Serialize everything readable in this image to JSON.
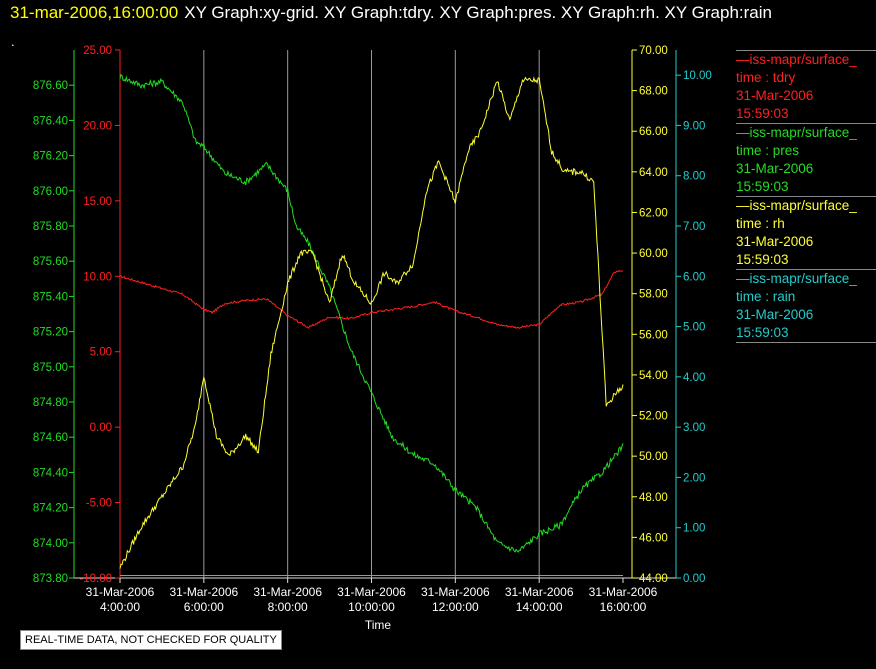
{
  "header": {
    "date_label": "31-mar-2006,16:00:00",
    "graph_list": "XY Graph:xy-grid.  XY Graph:tdry.  XY Graph:pres.  XY Graph:rh.  XY Graph:rain",
    "dot": "."
  },
  "disclaimer": "REAL-TIME DATA, NOT CHECKED FOR QUALITY",
  "legend": [
    {
      "name": "—iss-mapr/surface_",
      "line1": "time : tdry",
      "line2": "31-Mar-2006",
      "line3": "15:59:03",
      "color": "#ff2020"
    },
    {
      "name": "—iss-mapr/surface_",
      "line1": "time : pres",
      "line2": "31-Mar-2006",
      "line3": "15:59:03",
      "color": "#22dd22"
    },
    {
      "name": "—iss-mapr/surface_",
      "line1": "time : rh",
      "line2": "31-Mar-2006",
      "line3": "15:59:03",
      "color": "#ffff33"
    },
    {
      "name": "—iss-mapr/surface_",
      "line1": "time : rain",
      "line2": "31-Mar-2006",
      "line3": "15:59:03",
      "color": "#22cccc"
    }
  ],
  "chart_data": {
    "type": "line",
    "xlabel": "Time",
    "x_range_hours": [
      4,
      16
    ],
    "x_ticks": [
      {
        "hour": 4,
        "date": "31-Mar-2006",
        "time": "4:00:00"
      },
      {
        "hour": 6,
        "date": "31-Mar-2006",
        "time": "6:00:00"
      },
      {
        "hour": 8,
        "date": "31-Mar-2006",
        "time": "8:00:00"
      },
      {
        "hour": 10,
        "date": "31-Mar-2006",
        "time": "10:00:00"
      },
      {
        "hour": 12,
        "date": "31-Mar-2006",
        "time": "12:00:00"
      },
      {
        "hour": 14,
        "date": "31-Mar-2006",
        "time": "14:00:00"
      },
      {
        "hour": 16,
        "date": "31-Mar-2006",
        "time": "16:00:00"
      }
    ],
    "vertical_grid": true,
    "axes": {
      "tdry": {
        "range": [
          -10,
          25
        ],
        "ticks": [
          "25.00",
          "20.00",
          "15.00",
          "10.00",
          "5.00",
          "0.00",
          "-5.00",
          "-10.00"
        ],
        "color": "#ff2020"
      },
      "pres": {
        "range": [
          873.8,
          876.8
        ],
        "ticks": [
          "873.80",
          "874.00",
          "874.20",
          "874.40",
          "874.60",
          "874.80",
          "875.00",
          "875.20",
          "875.40",
          "875.60",
          "875.80",
          "876.00",
          "876.20",
          "876.40",
          "876.60"
        ],
        "color": "#22dd22"
      },
      "rh": {
        "range": [
          44,
          70
        ],
        "ticks": [
          "44.00",
          "46.00",
          "48.00",
          "50.00",
          "52.00",
          "54.00",
          "56.00",
          "58.00",
          "60.00",
          "62.00",
          "64.00",
          "66.00",
          "68.00",
          "70.00"
        ],
        "color": "#ffff33"
      },
      "rain": {
        "range": [
          0,
          10.5
        ],
        "ticks": [
          "0.00",
          "1.00",
          "2.00",
          "3.00",
          "4.00",
          "5.00",
          "6.00",
          "7.00",
          "8.00",
          "9.00",
          "10.00"
        ],
        "color": "#22cccc"
      }
    },
    "series": [
      {
        "name": "tdry",
        "axis": "tdry",
        "color": "#ff2020",
        "x": [
          4.0,
          4.5,
          5.0,
          5.5,
          6.0,
          6.2,
          6.5,
          7.0,
          7.5,
          8.0,
          8.5,
          9.0,
          9.5,
          10.0,
          10.5,
          11.0,
          11.5,
          12.0,
          12.5,
          13.0,
          13.5,
          14.0,
          14.5,
          15.0,
          15.5,
          15.8,
          16.0
        ],
        "values": [
          10.0,
          9.6,
          9.2,
          8.8,
          7.8,
          7.6,
          8.2,
          8.4,
          8.5,
          7.4,
          6.6,
          7.3,
          7.2,
          7.6,
          7.8,
          8.0,
          8.3,
          7.7,
          7.3,
          6.8,
          6.6,
          6.8,
          8.1,
          8.3,
          8.8,
          10.3,
          10.4
        ]
      },
      {
        "name": "pres",
        "axis": "pres",
        "color": "#22dd22",
        "x": [
          4.0,
          4.5,
          5.0,
          5.5,
          5.8,
          6.0,
          6.5,
          7.0,
          7.5,
          8.0,
          8.2,
          8.5,
          9.0,
          9.5,
          10.0,
          10.5,
          11.0,
          11.5,
          12.0,
          12.5,
          13.0,
          13.5,
          14.0,
          14.5,
          15.0,
          15.5,
          16.0
        ],
        "values": [
          876.65,
          876.6,
          876.62,
          876.5,
          876.28,
          876.25,
          876.1,
          876.05,
          876.15,
          876.0,
          875.8,
          875.7,
          875.45,
          875.1,
          874.85,
          874.6,
          874.5,
          874.45,
          874.3,
          874.2,
          874.0,
          873.95,
          874.05,
          874.1,
          874.3,
          874.4,
          874.55
        ]
      },
      {
        "name": "rh",
        "axis": "rh",
        "color": "#ffff33",
        "x": [
          4.0,
          4.5,
          5.0,
          5.5,
          5.8,
          6.0,
          6.3,
          6.6,
          7.0,
          7.3,
          7.6,
          8.0,
          8.3,
          8.6,
          9.0,
          9.3,
          9.6,
          10.0,
          10.3,
          10.6,
          11.0,
          11.3,
          11.6,
          12.0,
          12.3,
          12.6,
          13.0,
          13.3,
          13.6,
          14.0,
          14.3,
          14.6,
          15.0,
          15.3,
          15.6,
          16.0
        ],
        "values": [
          44.5,
          46.5,
          48.0,
          49.5,
          51.5,
          54.0,
          51.0,
          50.0,
          51.0,
          50.2,
          55.0,
          58.5,
          60.0,
          60.0,
          57.5,
          60.0,
          58.5,
          57.5,
          59.0,
          58.5,
          59.5,
          63.0,
          64.5,
          62.5,
          65.0,
          66.0,
          68.5,
          66.5,
          68.5,
          68.5,
          65.0,
          64.0,
          64.0,
          63.5,
          52.5,
          53.5
        ]
      },
      {
        "name": "rain",
        "axis": "rain",
        "color": "#22cccc",
        "x": [
          4.0,
          16.0
        ],
        "values": [
          0.05,
          0.05
        ]
      }
    ]
  }
}
